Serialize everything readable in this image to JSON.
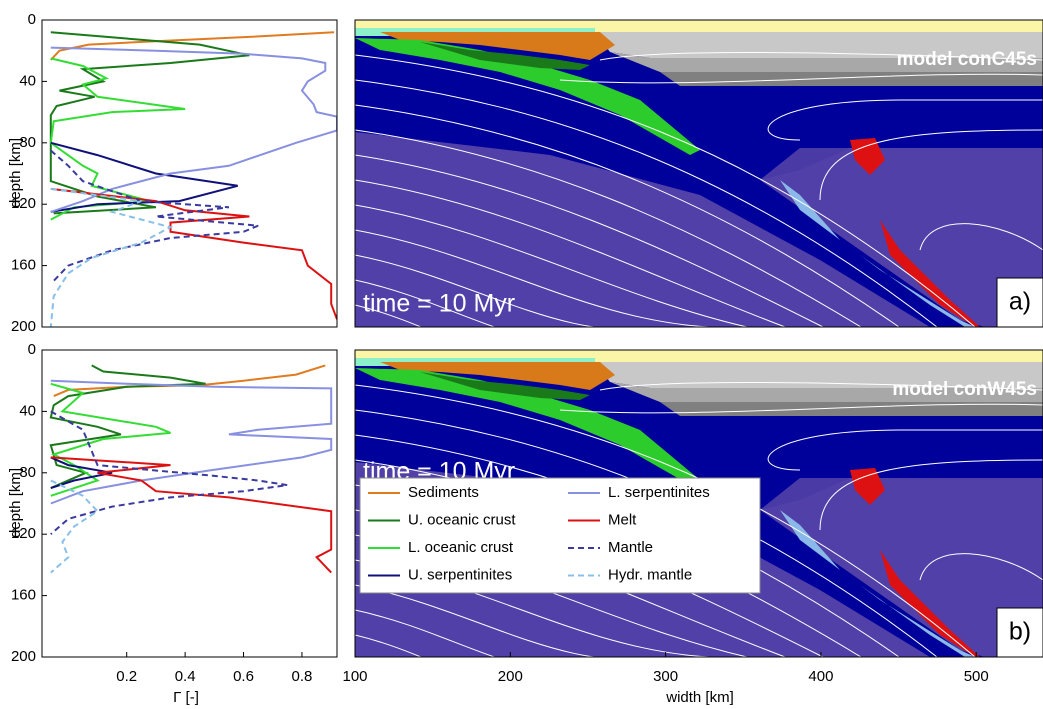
{
  "chart_data": [
    {
      "type": "line",
      "ylabel": "depth [km]",
      "xlim": [
        -0.09,
        0.92
      ],
      "ylim": [
        0,
        200
      ],
      "invert_y": true,
      "yticks": [
        0,
        40,
        80,
        120,
        160,
        200
      ],
      "series": [
        {
          "color": "#e07b20",
          "x": [
            0.91,
            0.62,
            0.28,
            0.07,
            -0.03,
            -0.06
          ],
          "y": [
            8,
            11,
            14,
            16,
            20,
            26
          ]
        },
        {
          "color": "#1a7a1a",
          "x": [
            -0.06,
            0.07,
            0.45,
            0.62,
            0.35,
            0.05,
            0.12,
            -0.03,
            0.09,
            -0.04,
            -0.06,
            -0.06,
            0.1,
            0.3,
            -0.05
          ],
          "y": [
            8,
            10,
            16,
            23,
            28,
            32,
            40,
            46,
            50,
            56,
            62,
            105,
            115,
            122,
            126
          ]
        },
        {
          "color": "#33dd33",
          "x": [
            -0.06,
            0.05,
            0.13,
            0.05,
            0.1,
            0.4,
            0.15,
            -0.05,
            -0.06,
            0.05,
            0.1,
            0.08,
            0.28,
            0.02,
            -0.06
          ],
          "y": [
            25,
            30,
            38,
            42,
            50,
            58,
            60,
            66,
            80,
            95,
            100,
            108,
            118,
            122,
            130
          ]
        },
        {
          "color": "#10107a",
          "x": [
            -0.06,
            0.1,
            0.3,
            0.58,
            0.38,
            0.1,
            -0.06
          ],
          "y": [
            80,
            88,
            100,
            108,
            118,
            120,
            125
          ]
        },
        {
          "color": "#8890e0",
          "x": [
            -0.06,
            0.3,
            0.6,
            0.8,
            0.88,
            0.88,
            0.82,
            0.8,
            0.84,
            0.85,
            0.92,
            0.92,
            0.78,
            0.55,
            0.35,
            0.15,
            0.05,
            -0.06
          ],
          "y": [
            18,
            20,
            22,
            25,
            28,
            33,
            40,
            46,
            55,
            60,
            63,
            72,
            80,
            95,
            100,
            110,
            118,
            125
          ]
        },
        {
          "color": "#dd1111",
          "x": [
            -0.06,
            0.3,
            0.4,
            0.62,
            0.35,
            0.35,
            0.6,
            0.8,
            0.82,
            0.9,
            0.9,
            0.92
          ],
          "y": [
            110,
            118,
            124,
            128,
            132,
            138,
            145,
            150,
            160,
            172,
            185,
            195
          ]
        },
        {
          "color": "#3a3aa0",
          "dash": true,
          "x": [
            -0.06,
            0,
            0.05,
            0.25,
            0.55,
            0.3,
            0.65,
            0.6,
            0.35,
            0.15,
            0,
            -0.05
          ],
          "y": [
            85,
            95,
            105,
            118,
            122,
            128,
            134,
            138,
            142,
            150,
            160,
            170
          ]
        },
        {
          "color": "#88c0e8",
          "dash": true,
          "x": [
            -0.06,
            0.25,
            0.15,
            0.35,
            0.25,
            0.08,
            0,
            -0.05,
            -0.06
          ],
          "y": [
            110,
            118,
            125,
            135,
            145,
            155,
            165,
            180,
            200
          ]
        }
      ]
    },
    {
      "type": "image",
      "title": "model conC45s",
      "annotation": "time = 10 Myr",
      "panel_label": "a)",
      "xlim": [
        100,
        543
      ],
      "ylim": [
        0,
        200
      ],
      "invert_y": true
    },
    {
      "type": "line",
      "ylabel": "depth [km]",
      "xlabel": "Γ [-]",
      "xlim": [
        -0.09,
        0.92
      ],
      "ylim": [
        0,
        200
      ],
      "invert_y": true,
      "yticks": [
        0,
        40,
        80,
        120,
        160,
        200
      ],
      "xticks": [
        0.2,
        0.4,
        0.6,
        0.8
      ],
      "legend": "lower left",
      "series": [
        {
          "name": "Sediments",
          "color": "#e07b20",
          "x": [
            0.88,
            0.78,
            0.6,
            0.45,
            0.2,
            0,
            -0.05
          ],
          "y": [
            10,
            16,
            20,
            23,
            24,
            26,
            30
          ]
        },
        {
          "name": "U. oceanic crust",
          "color": "#1a7a1a",
          "x": [
            0.08,
            0.12,
            0.35,
            0.47,
            0.2,
            0,
            -0.05,
            -0.06,
            0.1,
            0.18,
            -0.06,
            -0.04,
            0.06,
            -0.06
          ],
          "y": [
            10,
            14,
            18,
            22,
            24,
            30,
            36,
            44,
            50,
            55,
            62,
            75,
            80,
            90
          ]
        },
        {
          "name": "L. oceanic crust",
          "color": "#33dd33",
          "x": [
            -0.06,
            0.05,
            -0.02,
            0.3,
            0.35,
            0.12,
            -0.05,
            0.02,
            0.1,
            -0.06
          ],
          "y": [
            22,
            28,
            40,
            50,
            54,
            58,
            68,
            75,
            85,
            95
          ]
        },
        {
          "name": "U. serpentinites",
          "color": "#10107a",
          "x": [
            -0.06,
            0,
            0.15,
            0.02,
            -0.06
          ],
          "y": [
            70,
            75,
            80,
            85,
            90
          ]
        },
        {
          "name": "L. serpentinites",
          "color": "#8890e0",
          "x": [
            -0.06,
            0.2,
            0.5,
            0.9,
            0.9,
            0.9,
            0.9,
            0.65,
            0.55,
            0.9,
            0.9,
            0.8,
            0.5,
            0.25,
            0.05,
            -0.06
          ],
          "y": [
            20,
            22,
            24,
            25,
            30,
            40,
            48,
            52,
            55,
            58,
            65,
            70,
            78,
            85,
            92,
            100
          ]
        },
        {
          "name": "Melt",
          "color": "#dd1111",
          "x": [
            -0.06,
            0.35,
            0.1,
            0.25,
            0.3,
            0.55,
            0.9,
            0.9,
            0.9,
            0.9,
            0.85,
            0.9
          ],
          "y": [
            70,
            75,
            80,
            85,
            92,
            96,
            105,
            110,
            120,
            130,
            135,
            145
          ]
        },
        {
          "name": "Mantle",
          "color": "#3a3aa0",
          "dash": true,
          "x": [
            -0.06,
            0.05,
            0.1,
            0.5,
            0.65,
            0.75,
            0.6,
            0.35,
            0.15,
            0,
            -0.06
          ],
          "y": [
            40,
            52,
            75,
            82,
            85,
            88,
            92,
            96,
            102,
            110,
            120
          ]
        },
        {
          "name": "Hydr. mantle",
          "color": "#88c0e8",
          "dash": true,
          "x": [
            -0.06,
            0.05,
            0.1,
            0.02,
            -0.02,
            0,
            -0.06
          ],
          "y": [
            85,
            95,
            105,
            115,
            125,
            135,
            145
          ]
        }
      ]
    },
    {
      "type": "image",
      "title": "model conW45s",
      "annotation": "time = 10 Myr",
      "panel_label": "b)",
      "xlim": [
        100,
        543
      ],
      "ylim": [
        0,
        200
      ],
      "invert_y": true,
      "xticks": [
        100,
        200,
        300,
        400,
        500
      ],
      "xlabel": "width [km]"
    }
  ]
}
